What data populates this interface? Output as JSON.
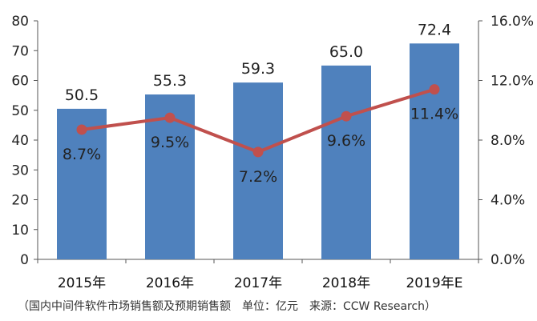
{
  "chart_data": {
    "type": "bar",
    "categories": [
      "2015年",
      "2016年",
      "2017年",
      "2018年",
      "2019年E"
    ],
    "series": [
      {
        "values": [
          50.5,
          55.3,
          59.3,
          65.0,
          72.4
        ],
        "labels": [
          "50.5",
          "55.3",
          "59.3",
          "65.0",
          "72.4"
        ],
        "color": "#4f81bd",
        "axis": "left",
        "kind": "bar"
      },
      {
        "values": [
          8.7,
          9.5,
          7.2,
          9.6,
          11.4
        ],
        "labels": [
          "8.7%",
          "9.5%",
          "7.2%",
          "9.6%",
          "11.4%"
        ],
        "color": "#c0504d",
        "axis": "right",
        "kind": "line"
      }
    ],
    "y_left": {
      "min": 0,
      "max": 80,
      "ticks": [
        "0",
        "10",
        "20",
        "30",
        "40",
        "50",
        "60",
        "70",
        "80"
      ]
    },
    "y_right": {
      "min": 0,
      "max": 16,
      "ticks": [
        "0.0%",
        "4.0%",
        "8.0%",
        "12.0%",
        "16.0%"
      ]
    },
    "grid": false,
    "legend": "none"
  },
  "footnote": "（国内中间件软件市场销售额及预期销售额　单位：亿元　来源：CCW Research）"
}
